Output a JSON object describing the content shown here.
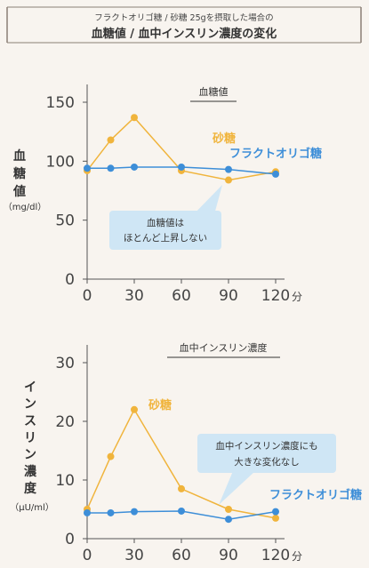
{
  "header": {
    "subtitle": "フラクトオリゴ糖 / 砂糖 25gを摂取した場合の",
    "title": "血糖値 / 血中インスリン濃度の変化"
  },
  "colors": {
    "sucrose": "#f0b43c",
    "fructo": "#3d8ed8",
    "axis": "#555555",
    "callout": "#cfe6f5",
    "background": "#f8f4ef"
  },
  "chart_data": [
    {
      "type": "line",
      "title": "血糖値",
      "ylabel": "血糖値",
      "yunit": "（mg/dl）",
      "xunit": "分",
      "x": [
        0,
        15,
        30,
        60,
        90,
        120
      ],
      "xticks": [
        "0",
        "30",
        "60",
        "90",
        "120"
      ],
      "yticks": [
        "0",
        "50",
        "100",
        "150"
      ],
      "xlim": [
        0,
        120
      ],
      "ylim": [
        0,
        150
      ],
      "series": [
        {
          "name": "砂糖",
          "key": "sucrose",
          "values": [
            92,
            118,
            137,
            92,
            84,
            91
          ]
        },
        {
          "name": "フラクトオリゴ糖",
          "key": "fructo",
          "values": [
            94,
            94,
            95,
            95,
            93,
            89
          ]
        }
      ],
      "annotation": [
        "血糖値は",
        "ほとんど上昇しない"
      ]
    },
    {
      "type": "line",
      "title": "血中インスリン濃度",
      "ylabel": "インスリン濃度",
      "yunit": "（μU/ml）",
      "xunit": "分",
      "x": [
        0,
        15,
        30,
        60,
        90,
        120
      ],
      "xticks": [
        "0",
        "30",
        "60",
        "90",
        "120"
      ],
      "yticks": [
        "0",
        "10",
        "20",
        "30"
      ],
      "xlim": [
        0,
        120
      ],
      "ylim": [
        0,
        30
      ],
      "series": [
        {
          "name": "砂糖",
          "key": "sucrose",
          "values": [
            5,
            14,
            22,
            8.5,
            5,
            3.5
          ]
        },
        {
          "name": "フラクトオリゴ糖",
          "key": "fructo",
          "values": [
            4.4,
            4.4,
            4.6,
            4.7,
            3.3,
            4.6
          ]
        }
      ],
      "annotation": [
        "血中インスリン濃度にも",
        "大きな変化なし"
      ]
    }
  ]
}
